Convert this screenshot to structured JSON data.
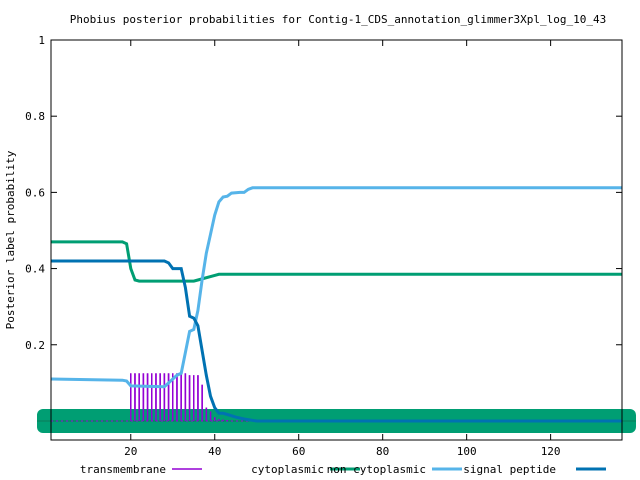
{
  "chart_data": {
    "type": "line",
    "title": "Phobius posterior probabilities for Contig-1_CDS_annotation_glimmer3Xpl_log_10_43",
    "xlabel": "",
    "ylabel": "Posterior label probability",
    "xlim": [
      1,
      137
    ],
    "ylim": [
      -0.05,
      1.0
    ],
    "x_ticks": [
      20,
      40,
      60,
      80,
      100,
      120
    ],
    "y_ticks": [
      0.2,
      0.4,
      0.6,
      0.8,
      1
    ],
    "y_tick_labels": [
      "0.2",
      "0.4",
      "0.6",
      "0.8",
      "1"
    ],
    "grid": false,
    "legend_position": "bottom",
    "series": [
      {
        "name": "transmembrane",
        "color": "#9400d3",
        "style": "impulses",
        "points": [
          [
            1,
            0.0
          ],
          [
            19,
            0.0
          ],
          [
            20,
            0.125
          ],
          [
            21,
            0.125
          ],
          [
            22,
            0.125
          ],
          [
            23,
            0.125
          ],
          [
            24,
            0.125
          ],
          [
            25,
            0.125
          ],
          [
            26,
            0.125
          ],
          [
            27,
            0.125
          ],
          [
            28,
            0.125
          ],
          [
            29,
            0.125
          ],
          [
            30,
            0.125
          ],
          [
            31,
            0.125
          ],
          [
            32,
            0.125
          ],
          [
            33,
            0.125
          ],
          [
            34,
            0.12
          ],
          [
            35,
            0.12
          ],
          [
            36,
            0.12
          ],
          [
            37,
            0.095
          ],
          [
            38,
            0.035
          ],
          [
            39,
            0.025
          ],
          [
            40,
            0.01
          ],
          [
            41,
            0.005
          ],
          [
            45,
            0.0
          ],
          [
            137,
            0.0
          ]
        ]
      },
      {
        "name": "cytoplasmic",
        "color": "#009e73",
        "style": "line",
        "points": [
          [
            1,
            0.0
          ],
          [
            137,
            0.0
          ]
        ]
      },
      {
        "name": "non cytoplasmic",
        "color": "#009e73",
        "style": "line",
        "points": [
          [
            1,
            0.47
          ],
          [
            18,
            0.47
          ],
          [
            19,
            0.465
          ],
          [
            20,
            0.4
          ],
          [
            21,
            0.37
          ],
          [
            22,
            0.367
          ],
          [
            35,
            0.367
          ],
          [
            36,
            0.37
          ],
          [
            40,
            0.382
          ],
          [
            41,
            0.385
          ],
          [
            137,
            0.385
          ]
        ]
      },
      {
        "name": "signal peptide",
        "color": "#56b4e9",
        "style": "line",
        "points": [
          [
            1,
            0.11
          ],
          [
            18,
            0.107
          ],
          [
            19,
            0.105
          ],
          [
            20,
            0.092
          ],
          [
            28,
            0.09
          ],
          [
            29,
            0.1
          ],
          [
            30,
            0.11
          ],
          [
            31,
            0.12
          ],
          [
            32,
            0.125
          ],
          [
            33,
            0.18
          ],
          [
            34,
            0.235
          ],
          [
            35,
            0.24
          ],
          [
            36,
            0.29
          ],
          [
            37,
            0.37
          ],
          [
            38,
            0.44
          ],
          [
            39,
            0.49
          ],
          [
            40,
            0.54
          ],
          [
            41,
            0.575
          ],
          [
            42,
            0.588
          ],
          [
            43,
            0.59
          ],
          [
            44,
            0.598
          ],
          [
            46,
            0.6
          ],
          [
            47,
            0.6
          ],
          [
            48,
            0.608
          ],
          [
            49,
            0.612
          ],
          [
            137,
            0.612
          ]
        ]
      },
      {
        "name": "signal peptide",
        "color": "#0072b2",
        "style": "line",
        "points": [
          [
            1,
            0.42
          ],
          [
            28,
            0.42
          ],
          [
            29,
            0.415
          ],
          [
            30,
            0.4
          ],
          [
            32,
            0.4
          ],
          [
            33,
            0.35
          ],
          [
            34,
            0.275
          ],
          [
            35,
            0.27
          ],
          [
            36,
            0.25
          ],
          [
            37,
            0.185
          ],
          [
            38,
            0.12
          ],
          [
            39,
            0.065
          ],
          [
            40,
            0.035
          ],
          [
            41,
            0.02
          ],
          [
            42,
            0.02
          ],
          [
            43,
            0.017
          ],
          [
            45,
            0.01
          ],
          [
            47,
            0.005
          ],
          [
            50,
            0.0
          ],
          [
            137,
            0.0
          ]
        ]
      }
    ],
    "legend": [
      {
        "label": "transmembrane",
        "color": "#9400d3"
      },
      {
        "label": "cytoplasmic",
        "color": "#009e73"
      },
      {
        "label": "non cytoplasmic",
        "color": "#009e73"
      },
      {
        "label": "signal peptide",
        "color": "#56b4e9"
      },
      {
        "label": "",
        "color": "#0072b2"
      }
    ]
  }
}
